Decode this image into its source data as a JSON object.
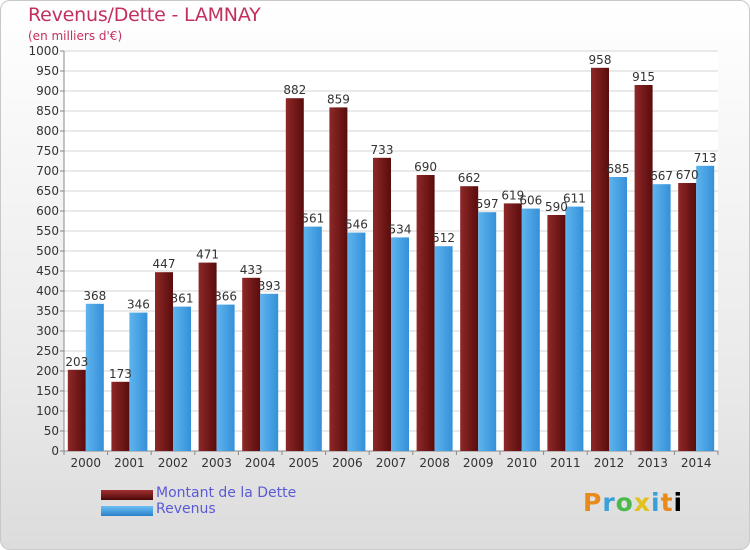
{
  "title": "Revenus/Dette - LAMNAY",
  "subtitle": "(en milliers d'€)",
  "legend": {
    "debt_label": "Montant de la Dette",
    "revenue_label": "Revenus"
  },
  "logo_text": "Proxiti",
  "colors": {
    "debt": "#7a1c1c",
    "revenue": "#4aa6e8",
    "title": "#c4305e",
    "legend_text": "#5a5ad6"
  },
  "chart_data": {
    "type": "bar",
    "title": "Revenus/Dette - LAMNAY",
    "subtitle": "(en milliers d'€)",
    "categories": [
      "2000",
      "2001",
      "2002",
      "2003",
      "2004",
      "2005",
      "2006",
      "2007",
      "2008",
      "2009",
      "2010",
      "2011",
      "2012",
      "2013",
      "2014"
    ],
    "series": [
      {
        "name": "Montant de la Dette",
        "values": [
          203,
          173,
          447,
          471,
          433,
          882,
          859,
          733,
          690,
          662,
          619,
          590,
          958,
          915,
          670
        ]
      },
      {
        "name": "Revenus",
        "values": [
          368,
          346,
          361,
          366,
          393,
          561,
          546,
          534,
          512,
          597,
          606,
          611,
          685,
          667,
          713
        ]
      }
    ],
    "ylim": [
      0,
      1000
    ],
    "yticks": [
      0,
      50,
      100,
      150,
      200,
      250,
      300,
      350,
      400,
      450,
      500,
      550,
      600,
      650,
      700,
      750,
      800,
      850,
      900,
      950,
      1000
    ],
    "grid": "horizontal",
    "legend_position": "bottom-left"
  }
}
